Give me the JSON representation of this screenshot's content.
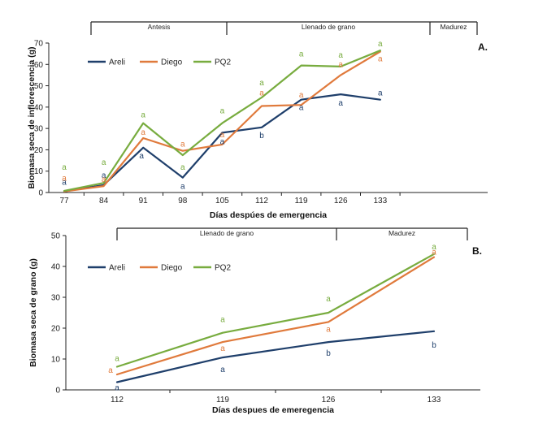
{
  "colors": {
    "Areli": "#1f3f6b",
    "Diego": "#e07a3c",
    "PQ2": "#78ac3f",
    "axis": "#222222"
  },
  "chart_data": [
    {
      "type": "line",
      "panel_label": "A.",
      "xlabel": "Días despúes de emergencia",
      "ylabel": "Biomasa seca de inflorescencia (g)",
      "categories": [
        "77",
        "84",
        "91",
        "98",
        "105",
        "112",
        "119",
        "126",
        "133"
      ],
      "ylim": [
        0,
        70
      ],
      "yticks": [
        0,
        10,
        20,
        30,
        40,
        50,
        60,
        70
      ],
      "phases": [
        "Antesis",
        "Llenado de grano",
        "Madurez"
      ],
      "legend": [
        "Areli",
        "Diego",
        "PQ2"
      ],
      "series": [
        {
          "name": "Areli",
          "values": [
            0.5,
            3.5,
            21,
            7,
            28,
            30.5,
            43.5,
            46,
            43.5
          ],
          "letters": [
            "a",
            "a",
            "a",
            "a",
            "a",
            "b",
            "a",
            "a",
            "a"
          ]
        },
        {
          "name": "Diego",
          "values": [
            0.5,
            3.0,
            25.5,
            19.5,
            22.5,
            40.5,
            41,
            55,
            66
          ],
          "letters": [
            "a",
            "a",
            "a",
            "a",
            "a",
            "a",
            "a",
            "a",
            "a"
          ]
        },
        {
          "name": "PQ2",
          "values": [
            0.8,
            4.5,
            32.5,
            17.5,
            32.5,
            44.5,
            59.5,
            59,
            66.5
          ],
          "letters": [
            "a",
            "a",
            "a",
            "a",
            "a",
            "a",
            "a",
            "a",
            "a"
          ]
        }
      ]
    },
    {
      "type": "line",
      "panel_label": "B.",
      "xlabel": "Días despues de emeregencia",
      "ylabel": "Biomasa seca de grano (g)",
      "categories": [
        "112",
        "119",
        "126",
        "133"
      ],
      "ylim": [
        0,
        50
      ],
      "yticks": [
        0,
        10,
        20,
        30,
        40,
        50
      ],
      "phases": [
        "Llenado de grano",
        "Madurez"
      ],
      "legend": [
        "Areli",
        "Diego",
        "PQ2"
      ],
      "series": [
        {
          "name": "Areli",
          "values": [
            2.5,
            10.5,
            15.5,
            19
          ],
          "letters": [
            "a",
            "a",
            "b",
            "b"
          ]
        },
        {
          "name": "Diego",
          "values": [
            5,
            15.5,
            22,
            43
          ],
          "letters": [
            "a",
            "a",
            "a",
            "a"
          ]
        },
        {
          "name": "PQ2",
          "values": [
            7.5,
            18.5,
            25,
            44
          ],
          "letters": [
            "a",
            "a",
            "a",
            "a"
          ]
        }
      ]
    }
  ]
}
